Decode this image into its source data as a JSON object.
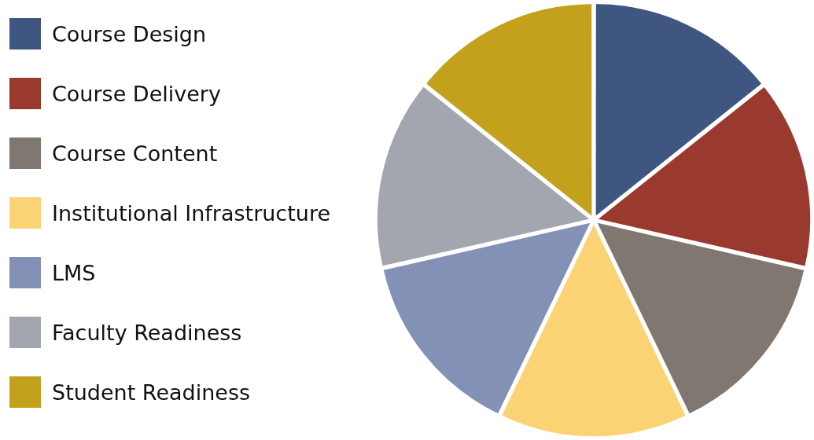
{
  "chart_data": {
    "type": "pie",
    "categories": [
      "Course Design",
      "Course Delivery",
      "Course Content",
      "Institutional Infrastructure",
      "LMS",
      "Faculty Readiness",
      "Student Readiness"
    ],
    "values": [
      14.29,
      14.29,
      14.28,
      14.29,
      14.28,
      14.29,
      14.28
    ],
    "colors": [
      "#3f5680",
      "#9a3a2f",
      "#7f7770",
      "#fbd375",
      "#8391b6",
      "#a3a6ae",
      "#c4a11d"
    ],
    "legend": "left"
  }
}
